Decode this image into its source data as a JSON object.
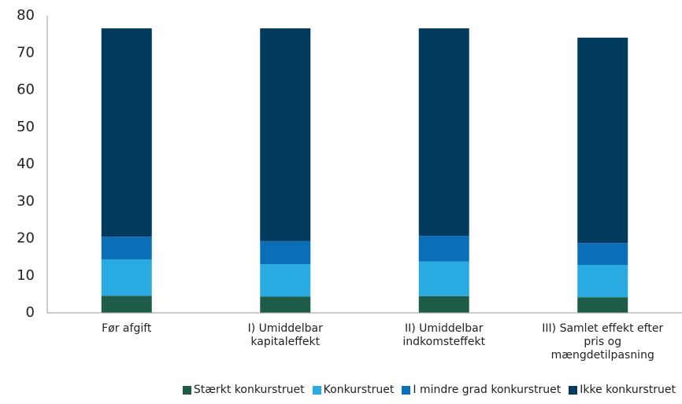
{
  "chart_data": {
    "type": "stacked_bar",
    "categories": [
      "Før afgift",
      "I) Umiddelbar kapitaleffekt",
      "II) Umiddelbar indkomsteffekt",
      "III) Samlet effekt efter pris og mængdetilpasning"
    ],
    "series": [
      {
        "name": "Stærkt konkurstruet",
        "color": "#1e5c4a",
        "values": [
          4.6,
          4.4,
          4.5,
          4.2
        ]
      },
      {
        "name": "Konkurstruet",
        "color": "#29abe2",
        "values": [
          9.8,
          8.7,
          9.3,
          8.7
        ]
      },
      {
        "name": "I mindre grad konkurstruet",
        "color": "#0a6fb8",
        "values": [
          6.1,
          6.2,
          6.9,
          5.9
        ]
      },
      {
        "name": "Ikke konkurstruet",
        "color": "#003a5c",
        "values": [
          56.1,
          57.3,
          55.9,
          55.3
        ]
      }
    ],
    "ylim": [
      0,
      80
    ],
    "yticks": [
      0,
      10,
      20,
      30,
      40,
      50,
      60,
      70,
      80
    ],
    "grid": false,
    "legend": "bottom"
  }
}
